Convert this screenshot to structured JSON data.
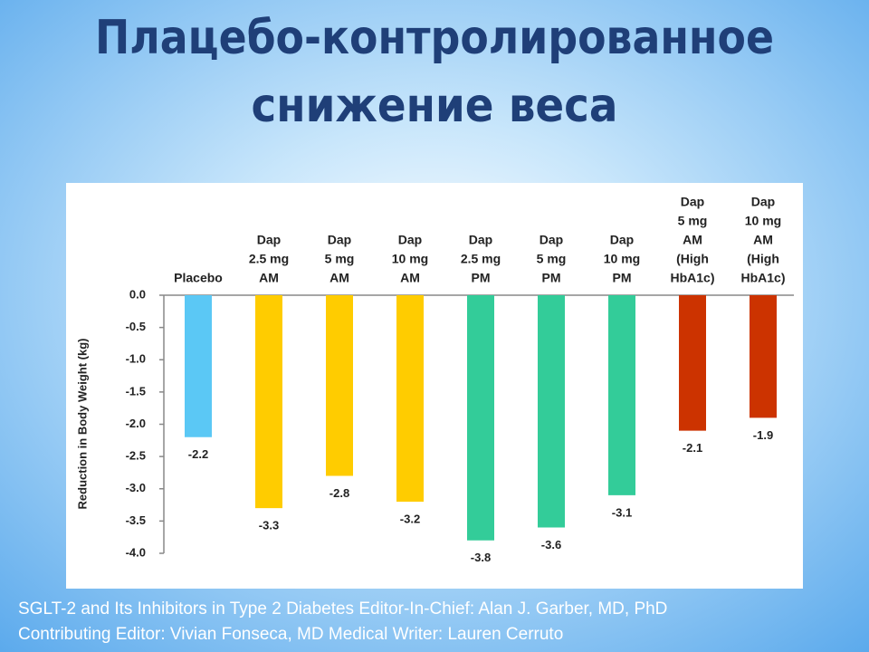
{
  "chart_data": {
    "type": "bar",
    "title": [
      "Плацебо-контролированное",
      "снижение веса"
    ],
    "y_label": "Reduction in Body Weight (kg)",
    "categories": [
      [
        "Placebo"
      ],
      [
        "Dap",
        "2.5 mg",
        "AM"
      ],
      [
        "Dap",
        "5 mg",
        "AM"
      ],
      [
        "Dap",
        "10 mg",
        "AM"
      ],
      [
        "Dap",
        "2.5 mg",
        "PM"
      ],
      [
        "Dap",
        "5 mg",
        "PM"
      ],
      [
        "Dap",
        "10 mg",
        "PM"
      ],
      [
        "Dap",
        "5 mg",
        "AM",
        "(High",
        "HbA1c)"
      ],
      [
        "Dap",
        "10 mg",
        "AM",
        "(High",
        "HbA1c)"
      ]
    ],
    "values": [
      -2.2,
      -3.3,
      -2.8,
      -3.2,
      -3.8,
      -3.6,
      -3.1,
      -2.1,
      -1.9
    ],
    "colors": [
      "#5bc8f5",
      "#ffcc00",
      "#ffcc00",
      "#ffcc00",
      "#33cc99",
      "#33cc99",
      "#33cc99",
      "#cc3300",
      "#cc3300"
    ],
    "ylim": [
      -4,
      0
    ],
    "yticks": [
      {
        "value": 0,
        "label": "0.0"
      },
      {
        "value": -0.5,
        "label": "-0.5"
      },
      {
        "value": -1,
        "label": "-1.0"
      },
      {
        "value": -1.5,
        "label": "-1.5"
      },
      {
        "value": -2,
        "label": "-2.0"
      },
      {
        "value": -2.5,
        "label": "-2.5"
      },
      {
        "value": -3,
        "label": "-3.0"
      },
      {
        "value": -3.5,
        "label": "-3.5"
      },
      {
        "value": -4,
        "label": "-4.0"
      }
    ],
    "source": [
      "SGLT-2 and Its Inhibitors in Type 2 Diabetes Editor-In-Chief: Alan J. Garber, MD, PhD",
      "Contributing Editor: Vivian Fonseca, MD Medical Writer: Lauren Cerruto"
    ]
  }
}
